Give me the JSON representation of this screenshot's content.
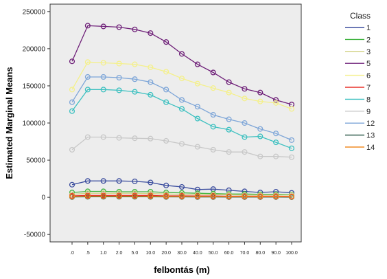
{
  "chart_data": {
    "type": "line",
    "xlabel": "felbontás (m)",
    "ylabel": "Estimated Marginal Means",
    "legend_title": "Class",
    "legend_position": "right",
    "ylim": [
      -60000,
      260000
    ],
    "yticks": [
      -50000,
      0,
      50000,
      100000,
      150000,
      200000,
      250000
    ],
    "ytick_labels": [
      "-50000",
      "0",
      "50000",
      "100000",
      "150000",
      "200000",
      "250000"
    ],
    "categories": [
      ".0",
      ".5",
      "1.0",
      "2.0",
      "5.0",
      "10.0",
      "20.0",
      "30.0",
      "40.0",
      "50.0",
      "60.0",
      "70.0",
      "80.0",
      "90.0",
      "100.0"
    ],
    "plot_background": "#ededed",
    "series": [
      {
        "name": "1",
        "color": "#3b4d9e",
        "values": [
          17000,
          22000,
          22000,
          22000,
          21500,
          20000,
          16000,
          14000,
          10500,
          11000,
          9500,
          8000,
          6500,
          7500,
          6000
        ]
      },
      {
        "name": "2",
        "color": "#3fb33f",
        "values": [
          6500,
          8000,
          8000,
          7500,
          7500,
          7500,
          6500,
          6000,
          5500,
          5000,
          4500,
          4500,
          4000,
          4000,
          3500
        ]
      },
      {
        "name": "3",
        "color": "#d0d080",
        "values": [
          4000,
          5500,
          5500,
          5500,
          5500,
          5000,
          4500,
          4000,
          4000,
          3500,
          3500,
          3000,
          3000,
          3000,
          3000
        ]
      },
      {
        "name": "5",
        "color": "#6e1f78",
        "values": [
          183000,
          231000,
          230000,
          229000,
          226000,
          221000,
          209000,
          193000,
          179000,
          168000,
          155000,
          146000,
          141000,
          131000,
          125000
        ]
      },
      {
        "name": "6",
        "color": "#f4f08a",
        "values": [
          145000,
          182000,
          181000,
          180000,
          179000,
          175000,
          169000,
          160000,
          153000,
          147000,
          141000,
          133000,
          129000,
          127000,
          119000
        ]
      },
      {
        "name": "7",
        "color": "#e8322a",
        "values": [
          2000,
          2500,
          2500,
          2500,
          2500,
          2500,
          2000,
          2000,
          1800,
          1800,
          1500,
          1500,
          1500,
          1500,
          1200
        ]
      },
      {
        "name": "8",
        "color": "#3cc0c0",
        "values": [
          116000,
          145000,
          145000,
          144000,
          142000,
          138000,
          128000,
          119000,
          106000,
          95000,
          91000,
          81000,
          82000,
          74000,
          66000
        ]
      },
      {
        "name": "9",
        "color": "#c8c8c8",
        "values": [
          64000,
          81000,
          81000,
          80000,
          79500,
          79000,
          76000,
          72000,
          68000,
          64000,
          61000,
          61000,
          55000,
          55000,
          54000
        ]
      },
      {
        "name": "12",
        "color": "#7ea6d8",
        "values": [
          128000,
          162000,
          162000,
          161000,
          159000,
          155000,
          145000,
          131000,
          122000,
          111000,
          105000,
          100000,
          92000,
          86000,
          77000
        ]
      },
      {
        "name": "13",
        "color": "#1b4d3a",
        "values": [
          500,
          800,
          800,
          800,
          800,
          700,
          600,
          600,
          500,
          500,
          400,
          400,
          400,
          400,
          300
        ]
      },
      {
        "name": "14",
        "color": "#f08b24",
        "values": [
          1000,
          1500,
          1500,
          1500,
          1500,
          1400,
          1200,
          1100,
          1000,
          1000,
          900,
          900,
          800,
          800,
          700
        ]
      }
    ]
  }
}
